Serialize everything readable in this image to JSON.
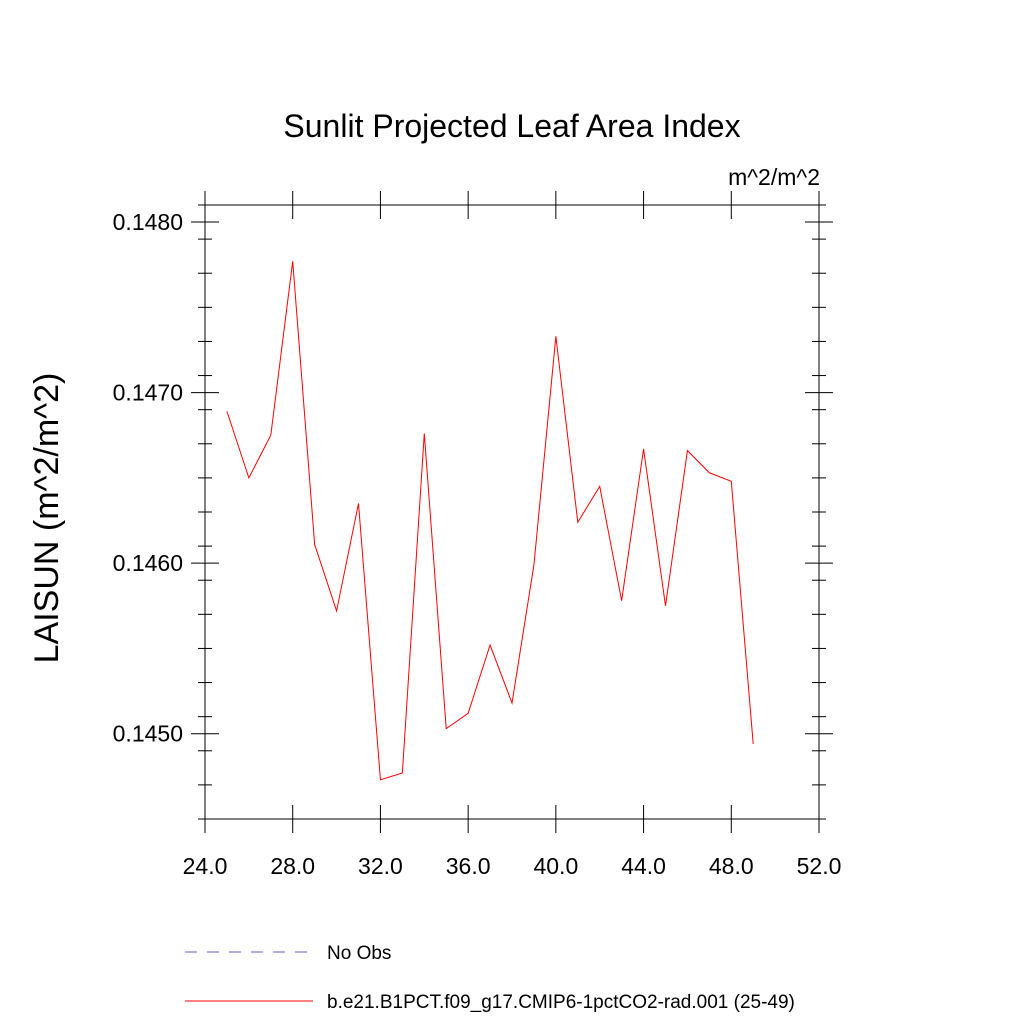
{
  "chart_data": {
    "type": "line",
    "title": "Sunlit Projected Leaf Area Index",
    "units_label": "m^2/m^2",
    "ylabel": "LAISUN  (m^2/m^2)",
    "xlabel": "",
    "xlim": [
      24,
      52
    ],
    "ylim": [
      0.1445,
      0.1481
    ],
    "x_ticks": [
      24,
      28,
      32,
      36,
      40,
      44,
      48,
      52
    ],
    "x_tick_labels": [
      "24.0",
      "28.0",
      "32.0",
      "36.0",
      "40.0",
      "44.0",
      "48.0",
      "52.0"
    ],
    "y_ticks": [
      0.145,
      0.146,
      0.147,
      0.148
    ],
    "y_tick_labels": [
      "0.1450",
      "0.1460",
      "0.1470",
      "0.1480"
    ],
    "grid": false,
    "legend_position": "bottom",
    "series": [
      {
        "name": "No Obs",
        "color": "#6a5acd",
        "style": "dashed",
        "x": [],
        "y": []
      },
      {
        "name": "b.e21.B1PCT.f09_g17.CMIP6-1pctCO2-rad.001 (25-49)",
        "color": "#ff0000",
        "style": "solid",
        "x": [
          25,
          26,
          27,
          28,
          29,
          30,
          31,
          32,
          33,
          34,
          35,
          36,
          37,
          38,
          39,
          40,
          41,
          42,
          43,
          44,
          45,
          46,
          47,
          48,
          49
        ],
        "y": [
          0.14689,
          0.1465,
          0.14675,
          0.14777,
          0.14611,
          0.14572,
          0.14635,
          0.14473,
          0.14477,
          0.14676,
          0.14503,
          0.14512,
          0.14552,
          0.14518,
          0.14599,
          0.14733,
          0.14624,
          0.14645,
          0.14578,
          0.14667,
          0.14575,
          0.14666,
          0.14653,
          0.14648,
          0.14494
        ]
      }
    ]
  }
}
